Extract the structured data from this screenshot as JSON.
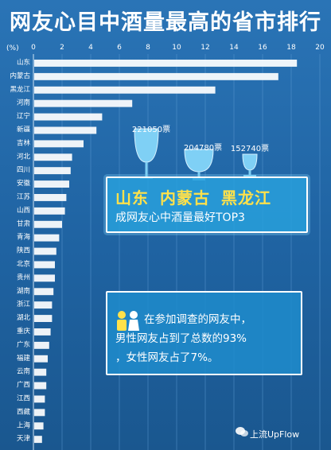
{
  "title": "网友心目中酒量最高的省市排行",
  "chart_data": {
    "type": "bar",
    "orientation": "horizontal",
    "title": "网友心目中酒量最高的省市排行",
    "ylabel": "(%)",
    "xlim": [
      0,
      20
    ],
    "ticks": [
      "0",
      "2",
      "4",
      "6",
      "8",
      "10",
      "12",
      "14",
      "16",
      "18",
      "20"
    ],
    "categories": [
      "山东",
      "内蒙古",
      "黑龙江",
      "河南",
      "辽宁",
      "新疆",
      "吉林",
      "河北",
      "四川",
      "安徽",
      "江苏",
      "山西",
      "甘肃",
      "青海",
      "陕西",
      "北京",
      "贵州",
      "湖南",
      "浙江",
      "湖北",
      "重庆",
      "广东",
      "福建",
      "云南",
      "广西",
      "江西",
      "西藏",
      "上海",
      "天津"
    ],
    "values": [
      18.4,
      17.1,
      12.7,
      6.9,
      4.8,
      4.4,
      3.5,
      2.7,
      2.6,
      2.5,
      2.3,
      2.2,
      2.0,
      1.8,
      1.6,
      1.5,
      1.5,
      1.4,
      1.3,
      1.3,
      1.2,
      1.1,
      1.0,
      0.9,
      0.9,
      0.8,
      0.8,
      0.7,
      0.6
    ],
    "bar_color": "#ffffff",
    "grid": true,
    "annotations": [
      "221050票",
      "204780票",
      "152740票"
    ]
  },
  "promo": {
    "top3": [
      "山东",
      "内蒙古",
      "黑龙江"
    ],
    "subtitle": "成网友心中酒量最好TOP3",
    "accent": "#ffe14a"
  },
  "stat": {
    "line1": "在参加调查的网友中，",
    "line2": "男性网友占到了总数的93%",
    "line3": "，女性网友占了7%。"
  },
  "watermark": "上流UpFlow"
}
